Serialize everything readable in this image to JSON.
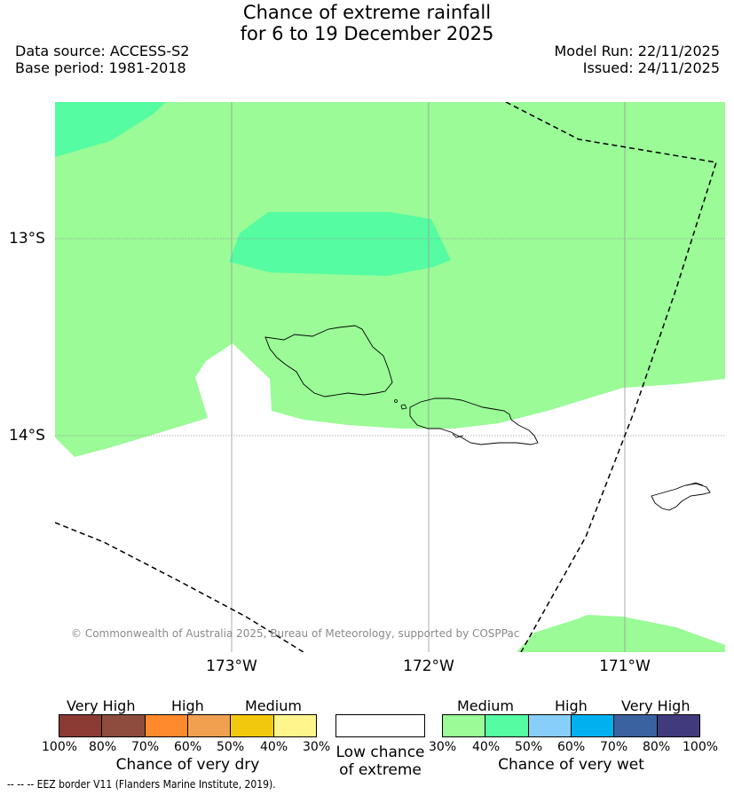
{
  "header": {
    "title_line1": "Chance of extreme rainfall",
    "title_line2": "for 6 to 19 December 2025",
    "data_source": "Data source: ACCESS-S2",
    "base_period": "Base period: 1981-2018",
    "model_run": "Model Run: 22/11/2025",
    "issued": "Issued: 24/11/2025"
  },
  "map": {
    "lat_labels": [
      "13°S",
      "14°S"
    ],
    "lon_labels": [
      "173°W",
      "172°W",
      "171°W"
    ],
    "credit": "© Commonwealth of Australia 2025, Bureau of Meteorology, supported by COSPPac",
    "colors": {
      "medium_wet": "#9afb97",
      "high_wet": "#55fca1"
    }
  },
  "legend": {
    "dry": {
      "headings": [
        "Very High",
        "High",
        "Medium"
      ],
      "colors": [
        "#8b3a34",
        "#8d4c3e",
        "#fe8a2b",
        "#f0a04e",
        "#f2c80f",
        "#fef68c"
      ],
      "ticks": [
        "100%",
        "80%",
        "70%",
        "60%",
        "50%",
        "40%",
        "30%"
      ],
      "title": "Chance of very dry"
    },
    "low": {
      "title_line1": "Low chance",
      "title_line2": "of extreme"
    },
    "wet": {
      "headings": [
        "Medium",
        "High",
        "Very High"
      ],
      "colors": [
        "#9afb97",
        "#55fca1",
        "#87cefa",
        "#00b0ef",
        "#3b62a0",
        "#413a7c"
      ],
      "ticks": [
        "30%",
        "40%",
        "50%",
        "60%",
        "70%",
        "80%",
        "100%"
      ],
      "title": "Chance of very wet"
    }
  },
  "footer": {
    "eez_note": "-- -- -- EEZ border V11 (Flanders Marine Institute, 2019)."
  }
}
